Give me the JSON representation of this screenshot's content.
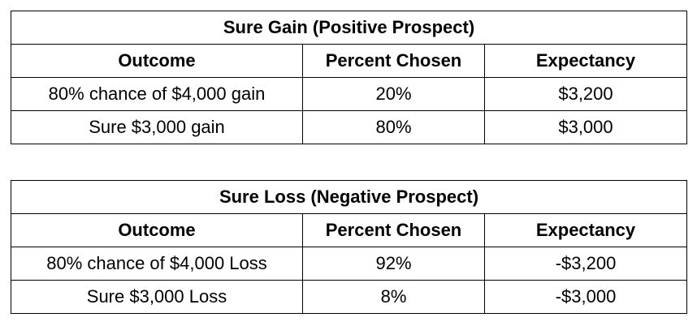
{
  "tables": [
    {
      "title": "Sure Gain (Positive Prospect)",
      "headers": [
        "Outcome",
        "Percent Chosen",
        "Expectancy"
      ],
      "rows": [
        [
          "80% chance of $4,000 gain",
          "20%",
          "$3,200"
        ],
        [
          "Sure $3,000 gain",
          "80%",
          "$3,000"
        ]
      ]
    },
    {
      "title": "Sure Loss (Negative Prospect)",
      "headers": [
        "Outcome",
        "Percent Chosen",
        "Expectancy"
      ],
      "rows": [
        [
          "80% chance of $4,000 Loss",
          "92%",
          "-$3,200"
        ],
        [
          "Sure $3,000 Loss",
          "8%",
          "-$3,000"
        ]
      ]
    }
  ]
}
